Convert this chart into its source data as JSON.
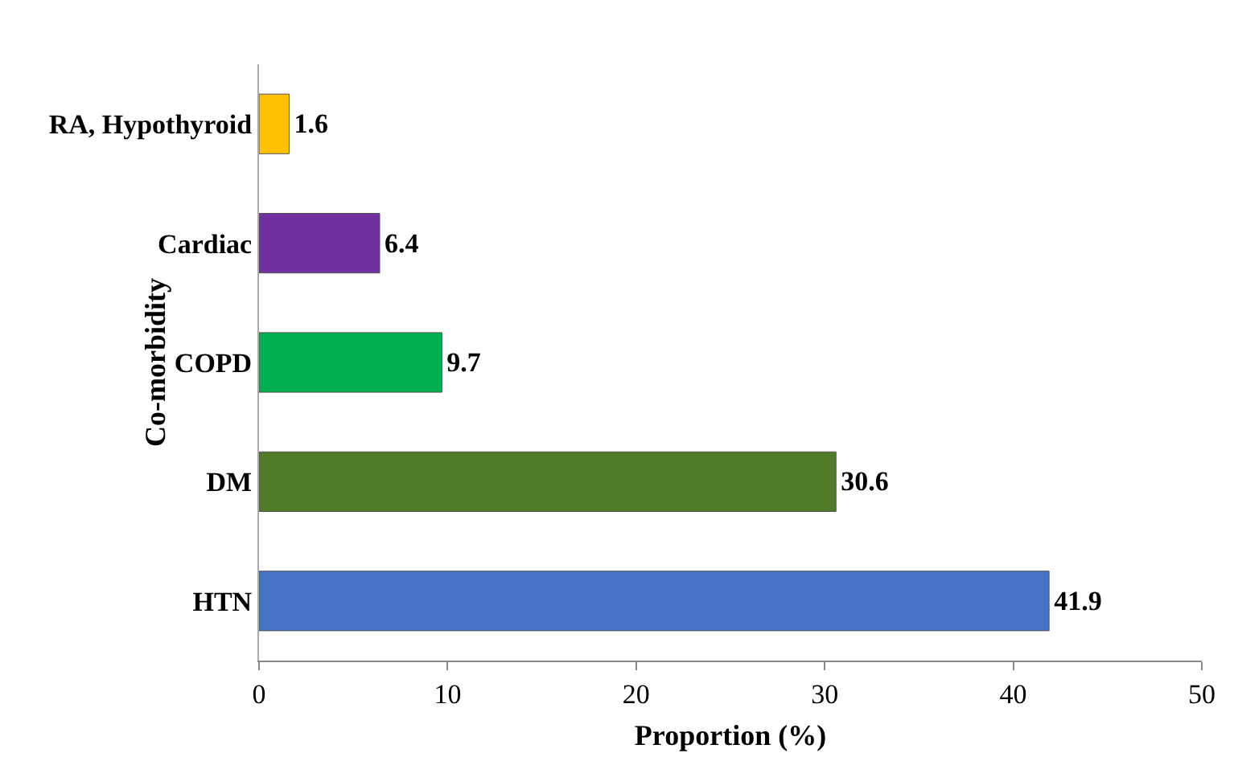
{
  "chart_data": {
    "type": "bar",
    "orientation": "horizontal",
    "xlabel": "Proportion (%)",
    "ylabel": "Co-morbidity",
    "categories": [
      "RA, Hypothyroid",
      "Cardiac",
      "COPD",
      "DM",
      "HTN"
    ],
    "values": [
      1.6,
      6.4,
      9.7,
      30.6,
      41.9
    ],
    "colors": [
      "#ffc000",
      "#7030a0",
      "#00b050",
      "#4f7a28",
      "#4472c4"
    ],
    "xlim": [
      0,
      50
    ],
    "xticks": [
      0,
      10,
      20,
      30,
      40,
      50
    ],
    "grid": false,
    "data_labels": true
  }
}
